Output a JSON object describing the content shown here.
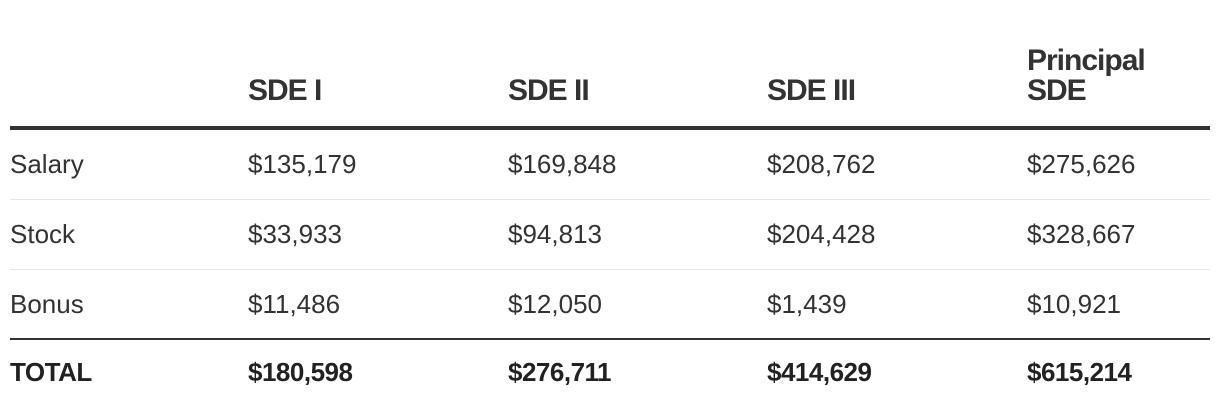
{
  "table": {
    "headers": [
      "",
      "SDE I",
      "SDE II",
      "SDE III",
      "Principal SDE"
    ],
    "rows": [
      {
        "label": "Salary",
        "values": [
          "$135,179",
          "$169,848",
          "$208,762",
          "$275,626"
        ]
      },
      {
        "label": "Stock",
        "values": [
          "$33,933",
          "$94,813",
          "$204,428",
          "$328,667"
        ]
      },
      {
        "label": "Bonus",
        "values": [
          "$11,486",
          "$12,050",
          "$1,439",
          "$10,921"
        ]
      }
    ],
    "total": {
      "label": "TOTAL",
      "values": [
        "$180,598",
        "$276,711",
        "$414,629",
        "$615,214"
      ]
    }
  }
}
